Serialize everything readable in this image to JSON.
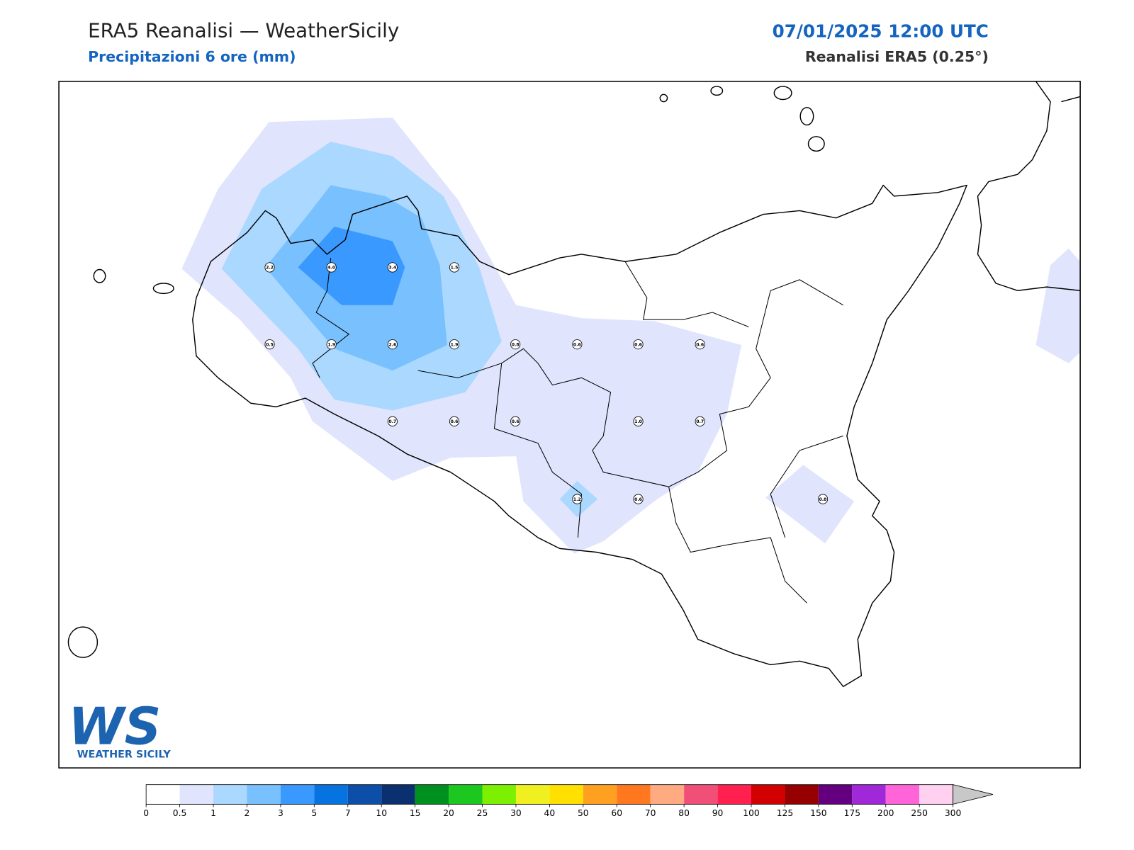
{
  "header": {
    "title": "ERA5 Reanalisi — WeatherSicily",
    "subtitle": "Precipitazioni 6 ore (mm)",
    "datetime": "07/01/2025 12:00 UTC",
    "product": "Reanalisi ERA5 (0.25°)"
  },
  "stations": [
    "2.2",
    "4.0",
    "3.4",
    "1.5",
    "0.5",
    "1.9",
    "2.6",
    "1.9",
    "0.8",
    "0.6",
    "0.6",
    "0.6",
    "0.7",
    "0.6",
    "0.6",
    "1.0",
    "0.7",
    "1.2",
    "0.6",
    "0.8"
  ],
  "legend": {
    "ticks": [
      0,
      0.5,
      1,
      2,
      3,
      5,
      7,
      10,
      15,
      20,
      25,
      30,
      40,
      50,
      60,
      70,
      80,
      90,
      100,
      125,
      150,
      175,
      200,
      250,
      300
    ],
    "colors": [
      "#ffffff",
      "#e0e4fd",
      "#aad8fe",
      "#78c0fe",
      "#3a99fe",
      "#0773e0",
      "#0d4fa8",
      "#0a3070",
      "#009020",
      "#1cc820",
      "#7cf000",
      "#f0f020",
      "#ffe000",
      "#ffa020",
      "#ff7820",
      "#ffaa80",
      "#f05078",
      "#ff2050",
      "#d20000",
      "#960000",
      "#640080",
      "#a028d8",
      "#ff64d8",
      "#ffd0f0"
    ],
    "over_color": "#c8c8c8"
  },
  "logo": {
    "mark": "WS",
    "text": "WEATHER SICILY"
  }
}
